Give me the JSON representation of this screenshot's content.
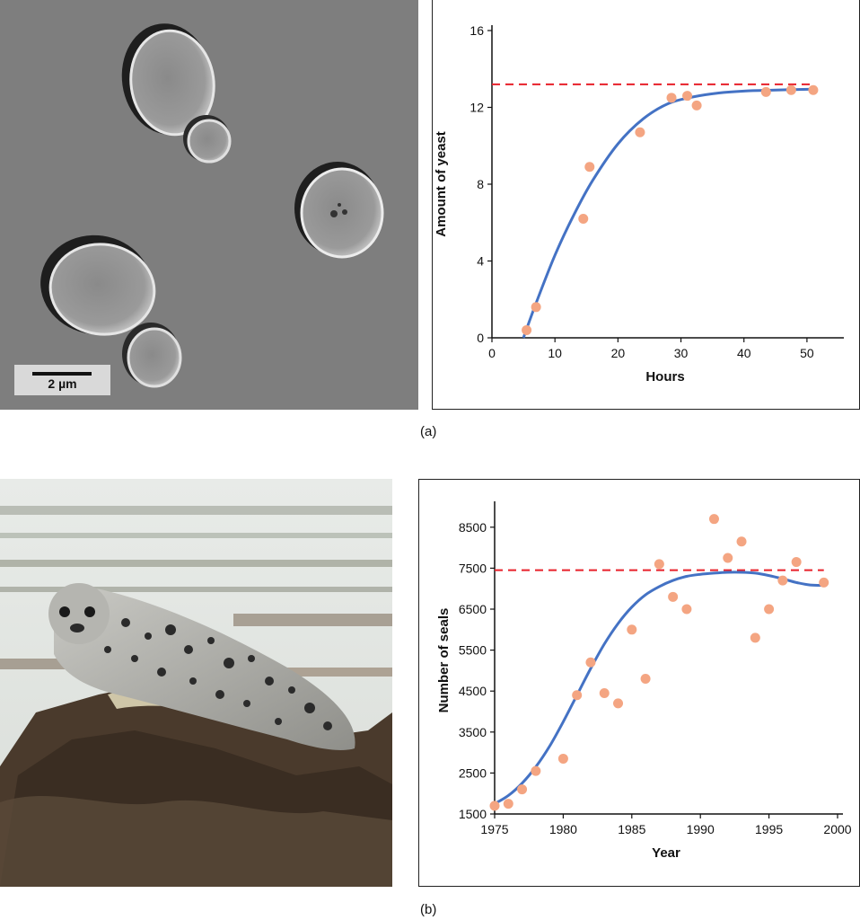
{
  "panel_labels": {
    "a": "(a)",
    "b": "(b)"
  },
  "yeast_photo": {
    "scale_bar_label": "2 µm"
  },
  "colors": {
    "curve": "#4472C4",
    "points": "#F4A582",
    "carrying_capacity": "#E8202A",
    "axis": "#111111"
  },
  "chart_data": [
    {
      "type": "scatter",
      "xlabel": "Hours",
      "ylabel": "Amount of yeast",
      "xlim": [
        0,
        55
      ],
      "ylim": [
        0,
        16
      ],
      "xticks": [
        0,
        10,
        20,
        30,
        40,
        50
      ],
      "yticks": [
        0,
        4,
        8,
        12,
        16
      ],
      "points": [
        [
          5.5,
          0.4
        ],
        [
          7,
          1.6
        ],
        [
          14.5,
          6.2
        ],
        [
          15.5,
          8.9
        ],
        [
          23.5,
          10.7
        ],
        [
          28.5,
          12.5
        ],
        [
          31,
          12.6
        ],
        [
          32.5,
          12.1
        ],
        [
          43.5,
          12.8
        ],
        [
          47.5,
          12.9
        ],
        [
          51,
          12.9
        ]
      ],
      "fit_curve": [
        [
          5,
          0.0
        ],
        [
          7,
          1.8
        ],
        [
          10,
          4.3
        ],
        [
          13,
          6.4
        ],
        [
          16,
          8.2
        ],
        [
          20,
          10.1
        ],
        [
          24,
          11.4
        ],
        [
          28,
          12.2
        ],
        [
          32,
          12.55
        ],
        [
          36,
          12.75
        ],
        [
          40,
          12.85
        ],
        [
          45,
          12.9
        ],
        [
          51,
          12.95
        ]
      ],
      "carrying_capacity": 13.2,
      "carrying_capacity_xrange": [
        0,
        51
      ]
    },
    {
      "type": "scatter",
      "xlabel": "Year",
      "ylabel": "Number of seals",
      "xlim": [
        1975,
        2000
      ],
      "ylim": [
        1500,
        9000
      ],
      "xticks": [
        1975,
        1980,
        1985,
        1990,
        1995,
        2000
      ],
      "yticks": [
        1500,
        2500,
        3500,
        4500,
        5500,
        6500,
        7500,
        8500
      ],
      "points": [
        [
          1975,
          1700
        ],
        [
          1976,
          1750
        ],
        [
          1977,
          2100
        ],
        [
          1978,
          2550
        ],
        [
          1980,
          2850
        ],
        [
          1981,
          4400
        ],
        [
          1982,
          5200
        ],
        [
          1983,
          4450
        ],
        [
          1984,
          4200
        ],
        [
          1985,
          6000
        ],
        [
          1986,
          4800
        ],
        [
          1987,
          7600
        ],
        [
          1988,
          6800
        ],
        [
          1989,
          6500
        ],
        [
          1991,
          8700
        ],
        [
          1992,
          7750
        ],
        [
          1993,
          8150
        ],
        [
          1994,
          5800
        ],
        [
          1995,
          6500
        ],
        [
          1996,
          7200
        ],
        [
          1997,
          7650
        ],
        [
          1999,
          7150
        ]
      ],
      "fit_curve": [
        [
          1975,
          1750
        ],
        [
          1976,
          1950
        ],
        [
          1977,
          2250
        ],
        [
          1978,
          2650
        ],
        [
          1979,
          3150
        ],
        [
          1980,
          3750
        ],
        [
          1981,
          4400
        ],
        [
          1982,
          5050
        ],
        [
          1983,
          5650
        ],
        [
          1984,
          6150
        ],
        [
          1985,
          6550
        ],
        [
          1986,
          6850
        ],
        [
          1987,
          7050
        ],
        [
          1988,
          7200
        ],
        [
          1989,
          7300
        ],
        [
          1990,
          7350
        ],
        [
          1991,
          7380
        ],
        [
          1992,
          7400
        ],
        [
          1993,
          7400
        ],
        [
          1994,
          7380
        ],
        [
          1995,
          7320
        ],
        [
          1996,
          7240
        ],
        [
          1997,
          7150
        ],
        [
          1998,
          7090
        ],
        [
          1999,
          7080
        ]
      ],
      "carrying_capacity": 7450,
      "carrying_capacity_xrange": [
        1975,
        1999
      ]
    }
  ]
}
